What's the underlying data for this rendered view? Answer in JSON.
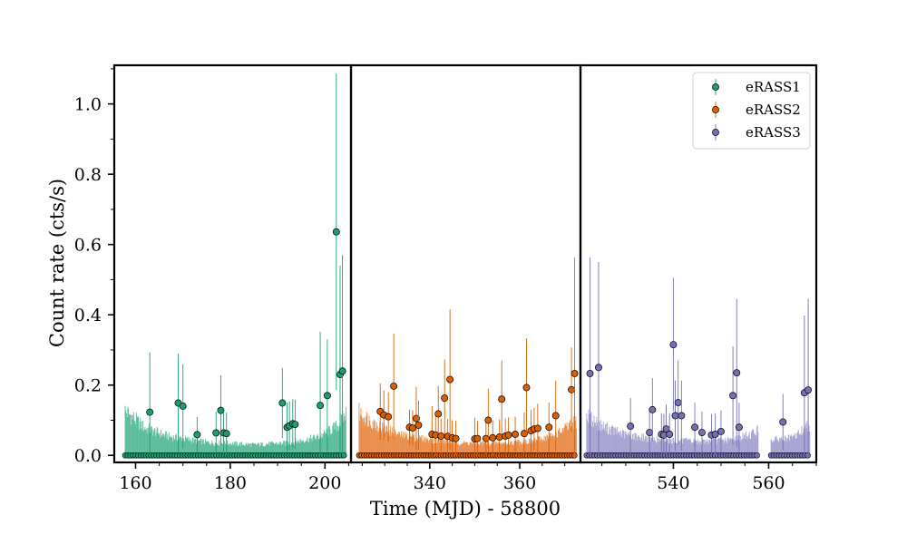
{
  "chart_data": {
    "type": "scatter",
    "xlabel": "Time (MJD) - 58800",
    "ylabel": "Count rate (cts/s)",
    "ylim": [
      -0.02,
      1.11
    ],
    "yticks": [
      0.0,
      0.2,
      0.4,
      0.6,
      0.8,
      1.0
    ],
    "ytick_labels": [
      "0.0",
      "0.2",
      "0.4",
      "0.6",
      "0.8",
      "1.0"
    ],
    "grid": false,
    "legend_position": "top-right",
    "panels": [
      {
        "series": "eRASS1",
        "xlim": [
          155.5,
          205.5
        ],
        "xticks": [
          160,
          180,
          200
        ],
        "xtick_labels": [
          "160",
          "180",
          "200"
        ],
        "segments": [
          [
            157.8,
            204.5
          ]
        ],
        "zero_point_step": 0.55
      },
      {
        "series": "eRASS2",
        "xlim": [
          322.5,
          373.5
        ],
        "xticks": [
          340,
          360
        ],
        "xtick_labels": [
          "340",
          "360"
        ],
        "segments": [
          [
            324.3,
            372.6
          ]
        ],
        "zero_point_step": 0.55
      },
      {
        "series": "eRASS3",
        "xlim": [
          520.5,
          570.0
        ],
        "xticks": [
          540,
          560
        ],
        "xtick_labels": [
          "540",
          "560"
        ],
        "segments": [
          [
            521.8,
            557.8
          ],
          [
            560.5,
            568.7
          ]
        ],
        "zero_point_step": 0.55
      }
    ],
    "series": [
      {
        "name": "eRASS1",
        "color": "#1b9e77",
        "fill_color": "#5bbc9a",
        "background_level": [
          [
            157.8,
            0.13
          ],
          [
            162.0,
            0.08
          ],
          [
            167.0,
            0.055
          ],
          [
            175.0,
            0.038
          ],
          [
            185.0,
            0.031
          ],
          [
            193.0,
            0.037
          ],
          [
            199.0,
            0.055
          ],
          [
            203.0,
            0.09
          ],
          [
            204.5,
            0.125
          ]
        ],
        "points": [
          {
            "x": 163.0,
            "y": 0.123,
            "err": 0.17
          },
          {
            "x": 169.0,
            "y": 0.149,
            "err": 0.14
          },
          {
            "x": 170.0,
            "y": 0.14,
            "err": 0.12
          },
          {
            "x": 173.0,
            "y": 0.059,
            "err": 0.05
          },
          {
            "x": 177.0,
            "y": 0.064,
            "err": 0.06
          },
          {
            "x": 178.0,
            "y": 0.128,
            "err": 0.1
          },
          {
            "x": 178.6,
            "y": 0.064,
            "err": 0.06
          },
          {
            "x": 179.2,
            "y": 0.062,
            "err": 0.06
          },
          {
            "x": 191.0,
            "y": 0.149,
            "err": 0.1
          },
          {
            "x": 192.0,
            "y": 0.08,
            "err": 0.07
          },
          {
            "x": 192.5,
            "y": 0.084,
            "err": 0.07
          },
          {
            "x": 193.2,
            "y": 0.09,
            "err": 0.07
          },
          {
            "x": 193.7,
            "y": 0.088,
            "err": 0.07
          },
          {
            "x": 199.0,
            "y": 0.142,
            "err": 0.21
          },
          {
            "x": 200.5,
            "y": 0.17,
            "err": 0.16
          },
          {
            "x": 202.4,
            "y": 0.636,
            "err": 0.45
          },
          {
            "x": 203.2,
            "y": 0.23,
            "err": 0.31
          },
          {
            "x": 203.7,
            "y": 0.24,
            "err": 0.33
          }
        ]
      },
      {
        "name": "eRASS2",
        "color": "#d95f02",
        "fill_color": "#e98e4d",
        "background_level": [
          [
            324.3,
            0.125
          ],
          [
            328.0,
            0.09
          ],
          [
            333.0,
            0.06
          ],
          [
            340.0,
            0.045
          ],
          [
            348.0,
            0.036
          ],
          [
            356.0,
            0.035
          ],
          [
            363.0,
            0.042
          ],
          [
            368.0,
            0.06
          ],
          [
            371.0,
            0.085
          ],
          [
            372.6,
            0.1
          ]
        ],
        "points": [
          {
            "x": 329.0,
            "y": 0.125,
            "err": 0.08
          },
          {
            "x": 329.8,
            "y": 0.115,
            "err": 0.07
          },
          {
            "x": 330.8,
            "y": 0.11,
            "err": 0.07
          },
          {
            "x": 332.0,
            "y": 0.197,
            "err": 0.15
          },
          {
            "x": 335.5,
            "y": 0.08,
            "err": 0.05
          },
          {
            "x": 336.2,
            "y": 0.078,
            "err": 0.05
          },
          {
            "x": 337.0,
            "y": 0.105,
            "err": 0.09
          },
          {
            "x": 337.5,
            "y": 0.086,
            "err": 0.07
          },
          {
            "x": 340.5,
            "y": 0.06,
            "err": 0.08
          },
          {
            "x": 341.3,
            "y": 0.058,
            "err": 0.06
          },
          {
            "x": 341.9,
            "y": 0.118,
            "err": 0.08
          },
          {
            "x": 342.5,
            "y": 0.055,
            "err": 0.05
          },
          {
            "x": 343.3,
            "y": 0.163,
            "err": 0.11
          },
          {
            "x": 344.0,
            "y": 0.054,
            "err": 0.05
          },
          {
            "x": 344.5,
            "y": 0.216,
            "err": 0.2
          },
          {
            "x": 345.0,
            "y": 0.05,
            "err": 0.05
          },
          {
            "x": 345.8,
            "y": 0.048,
            "err": 0.05
          },
          {
            "x": 350.0,
            "y": 0.047,
            "err": 0.06
          },
          {
            "x": 350.6,
            "y": 0.048,
            "err": 0.05
          },
          {
            "x": 352.5,
            "y": 0.048,
            "err": 0.05
          },
          {
            "x": 353.0,
            "y": 0.1,
            "err": 0.09
          },
          {
            "x": 354.0,
            "y": 0.05,
            "err": 0.05
          },
          {
            "x": 355.5,
            "y": 0.052,
            "err": 0.05
          },
          {
            "x": 356.0,
            "y": 0.16,
            "err": 0.11
          },
          {
            "x": 356.8,
            "y": 0.055,
            "err": 0.05
          },
          {
            "x": 357.5,
            "y": 0.058,
            "err": 0.05
          },
          {
            "x": 359.0,
            "y": 0.06,
            "err": 0.05
          },
          {
            "x": 361.0,
            "y": 0.062,
            "err": 0.06
          },
          {
            "x": 361.5,
            "y": 0.193,
            "err": 0.14
          },
          {
            "x": 362.5,
            "y": 0.07,
            "err": 0.06
          },
          {
            "x": 363.2,
            "y": 0.075,
            "err": 0.06
          },
          {
            "x": 364.0,
            "y": 0.077,
            "err": 0.07
          },
          {
            "x": 366.5,
            "y": 0.08,
            "err": 0.07
          },
          {
            "x": 368.0,
            "y": 0.113,
            "err": 0.1
          },
          {
            "x": 371.5,
            "y": 0.187,
            "err": 0.12
          },
          {
            "x": 372.2,
            "y": 0.233,
            "err": 0.33
          }
        ]
      },
      {
        "name": "eRASS3",
        "color": "#7570b3",
        "fill_color": "#a7a3d1",
        "background_level": [
          [
            521.8,
            0.115
          ],
          [
            525.0,
            0.085
          ],
          [
            530.0,
            0.06
          ],
          [
            537.0,
            0.045
          ],
          [
            545.0,
            0.04
          ],
          [
            552.0,
            0.045
          ],
          [
            556.0,
            0.06
          ],
          [
            557.8,
            0.075
          ],
          [
            560.5,
            0.045
          ],
          [
            565.0,
            0.05
          ],
          [
            568.7,
            0.09
          ]
        ],
        "points": [
          {
            "x": 522.5,
            "y": 0.233,
            "err": 0.33
          },
          {
            "x": 524.3,
            "y": 0.25,
            "err": 0.3
          },
          {
            "x": 531.0,
            "y": 0.083,
            "err": 0.08
          },
          {
            "x": 535.0,
            "y": 0.065,
            "err": 0.06
          },
          {
            "x": 535.6,
            "y": 0.13,
            "err": 0.09
          },
          {
            "x": 537.5,
            "y": 0.06,
            "err": 0.06
          },
          {
            "x": 538.0,
            "y": 0.058,
            "err": 0.06
          },
          {
            "x": 538.5,
            "y": 0.075,
            "err": 0.07
          },
          {
            "x": 539.2,
            "y": 0.06,
            "err": 0.06
          },
          {
            "x": 540.0,
            "y": 0.315,
            "err": 0.19
          },
          {
            "x": 540.4,
            "y": 0.113,
            "err": 0.1
          },
          {
            "x": 541.0,
            "y": 0.15,
            "err": 0.12
          },
          {
            "x": 541.7,
            "y": 0.113,
            "err": 0.1
          },
          {
            "x": 544.5,
            "y": 0.08,
            "err": 0.07
          },
          {
            "x": 546.0,
            "y": 0.065,
            "err": 0.06
          },
          {
            "x": 548.0,
            "y": 0.058,
            "err": 0.06
          },
          {
            "x": 548.8,
            "y": 0.06,
            "err": 0.06
          },
          {
            "x": 550.0,
            "y": 0.068,
            "err": 0.06
          },
          {
            "x": 552.5,
            "y": 0.17,
            "err": 0.14
          },
          {
            "x": 553.3,
            "y": 0.235,
            "err": 0.21
          },
          {
            "x": 553.8,
            "y": 0.08,
            "err": 0.07
          },
          {
            "x": 563.0,
            "y": 0.095,
            "err": 0.08
          },
          {
            "x": 567.5,
            "y": 0.178,
            "err": 0.22
          },
          {
            "x": 568.3,
            "y": 0.186,
            "err": 0.26
          }
        ]
      }
    ]
  }
}
